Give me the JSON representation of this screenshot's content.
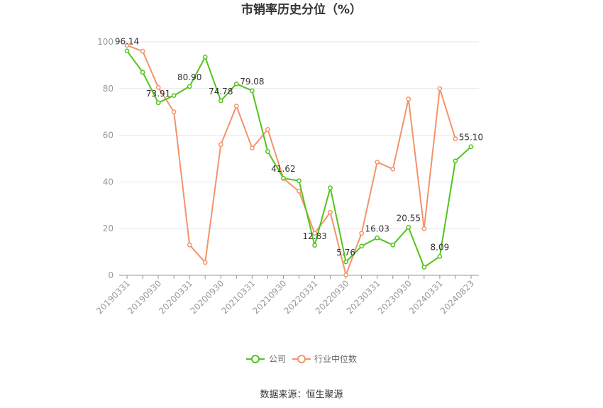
{
  "chart_data": {
    "type": "line",
    "title": "市销率历史分位（%）",
    "source": "数据来源：恒生聚源",
    "ylim": [
      0,
      100
    ],
    "yticks": [
      0,
      20,
      40,
      60,
      80,
      100
    ],
    "xticklabels": [
      "20190331",
      "20190930",
      "20200331",
      "20200930",
      "20210331",
      "20210930",
      "20220331",
      "20220930",
      "20230331",
      "20230930",
      "20240331",
      "20240823"
    ],
    "grid": true,
    "legend_position": "bottom",
    "series": [
      {
        "name": "公司",
        "color": "#52c41a",
        "values": [
          96.14,
          87,
          73.91,
          77,
          80.9,
          93.5,
          74.78,
          82,
          79.08,
          53,
          41.62,
          40.5,
          12.83,
          37.5,
          5.76,
          12.5,
          16.03,
          13,
          20.55,
          3.5,
          8.09,
          49,
          55.1
        ],
        "labels": {
          "0": "96.14",
          "2": "73.91",
          "4": "80.90",
          "6": "74.78",
          "8": "79.08",
          "10": "41.62",
          "12": "12.83",
          "14": "5.76",
          "16": "16.03",
          "18": "20.55",
          "20": "8.09",
          "22": "55.10"
        }
      },
      {
        "name": "行业中位数",
        "color": "#f5926a",
        "values": [
          98.5,
          96,
          80.5,
          70,
          13,
          5.5,
          56,
          72.5,
          54.5,
          62.5,
          41.5,
          36,
          18,
          27,
          0.2,
          18,
          48.5,
          45.5,
          75.5,
          20,
          80,
          58.5
        ]
      }
    ]
  }
}
